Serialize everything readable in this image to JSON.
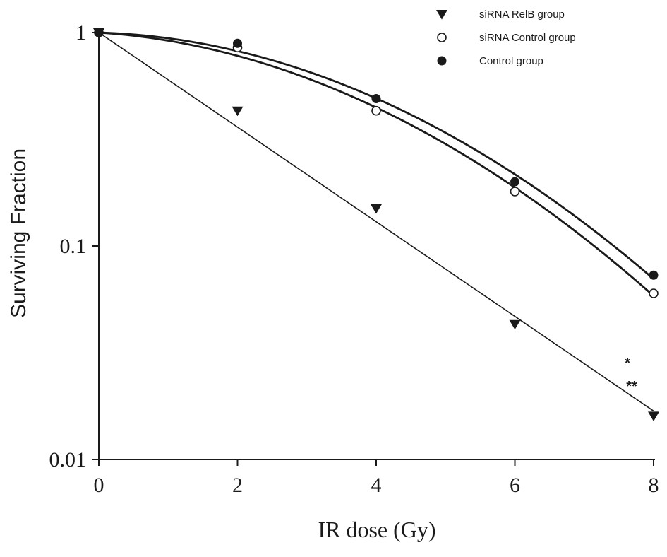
{
  "chart_data": {
    "type": "scatter",
    "title": "",
    "xlabel": "IR dose (Gy)",
    "ylabel": "Surviving Fraction",
    "xlim": [
      0,
      8
    ],
    "ylim": [
      0.01,
      1
    ],
    "y_scale": "log",
    "x_ticks": [
      "0",
      "2",
      "4",
      "6",
      "8"
    ],
    "y_ticks": [
      "0.01",
      "0.1",
      "1"
    ],
    "grid": false,
    "legend_position": "top-right",
    "annotations": [
      "*",
      "**"
    ],
    "series": [
      {
        "name": "siRNA RelB group",
        "marker": "triangle-down",
        "fit": "linear",
        "x": [
          0,
          2,
          4,
          6,
          8
        ],
        "y": [
          1.0,
          0.43,
          0.15,
          0.043,
          0.016
        ]
      },
      {
        "name": "siRNA Control group",
        "marker": "circle-open",
        "fit": "linear-quadratic",
        "x": [
          0,
          2,
          4,
          6,
          8
        ],
        "y": [
          1.0,
          0.85,
          0.43,
          0.18,
          0.06
        ]
      },
      {
        "name": "Control group",
        "marker": "circle-filled",
        "fit": "linear-quadratic",
        "x": [
          0,
          2,
          4,
          6,
          8
        ],
        "y": [
          1.0,
          0.89,
          0.49,
          0.2,
          0.073
        ]
      }
    ],
    "colors": {
      "ink": "#1a1a1a",
      "background": "#ffffff"
    }
  }
}
